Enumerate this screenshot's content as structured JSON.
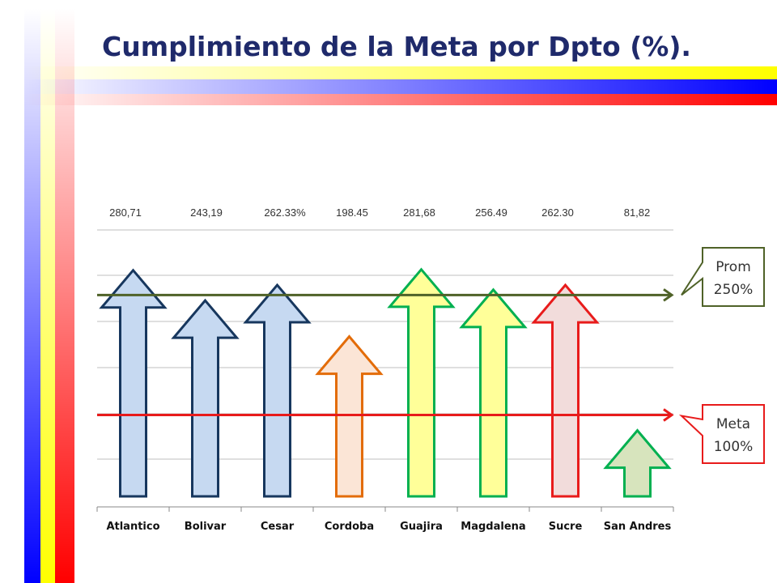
{
  "title": "Cumplimiento de la Meta por Dpto (%).",
  "colors": {
    "title": "#1f2a6b",
    "avg_line": "#4f6228",
    "goal_line": "#e81b1b"
  },
  "chart_data": {
    "type": "bar",
    "title": "Cumplimiento de la Meta por Dpto (%).",
    "categories": [
      "Atlantico",
      "Bolivar",
      "Cesar",
      "Cordoba",
      "Guajira",
      "Magdalena",
      "Sucre",
      "San Andres"
    ],
    "values": [
      280.71,
      243.19,
      262.33,
      198.45,
      281.68,
      256.49,
      262.3,
      81.82
    ],
    "value_labels": [
      "280,71",
      "243,19",
      "262.33%",
      "198.45",
      "281,68",
      "256.49",
      "262.30",
      "81,82"
    ],
    "bar_style": "up-arrow",
    "bar_fills": [
      "#c6d9f1",
      "#c6d9f1",
      "#c6d9f1",
      "#fbe5d6",
      "#ffff99",
      "#ffff99",
      "#f2dcdb",
      "#d7e4bd"
    ],
    "bar_strokes": [
      "#17375e",
      "#17375e",
      "#17375e",
      "#e36c09",
      "#00b050",
      "#00b050",
      "#e81b1b",
      "#00b050"
    ],
    "ylim": [
      0,
      320
    ],
    "grid": true,
    "reference_lines": [
      {
        "value": 250,
        "label_line1": "Prom",
        "label_line2": "250%",
        "color": "#4f6228"
      },
      {
        "value": 100,
        "label_line1": "Meta",
        "label_line2": "100%",
        "color": "#e81b1b"
      }
    ]
  }
}
